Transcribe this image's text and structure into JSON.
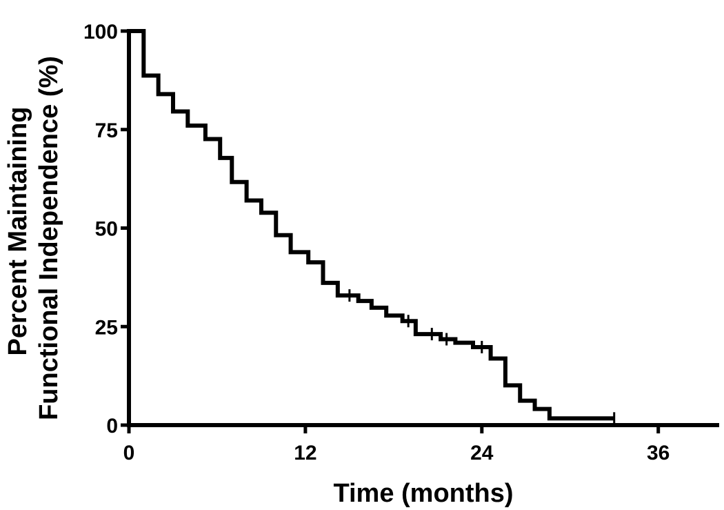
{
  "chart_data": {
    "type": "line",
    "subtype": "kaplan-meier step curve",
    "title": "",
    "xlabel": "Time (months)",
    "ylabel_lines": [
      "Percent Maintaining",
      "Functional Independence (%)"
    ],
    "xlim": [
      0,
      40
    ],
    "ylim": [
      0,
      100
    ],
    "xticks": [
      0,
      12,
      24,
      36
    ],
    "xtick_labels": [
      "0",
      "12",
      "24",
      "36"
    ],
    "yticks": [
      0,
      25,
      50,
      75,
      100
    ],
    "ytick_labels": [
      "0",
      "25",
      "50",
      "75",
      "100"
    ],
    "grid": false,
    "legend": "none",
    "line_color": "#000000",
    "series": [
      {
        "steps": [
          {
            "x": 0.0,
            "y": 100.0
          },
          {
            "x": 1.0,
            "y": 88.7
          },
          {
            "x": 2.0,
            "y": 84.0
          },
          {
            "x": 3.0,
            "y": 79.6
          },
          {
            "x": 4.0,
            "y": 76.0
          },
          {
            "x": 5.2,
            "y": 72.6
          },
          {
            "x": 6.2,
            "y": 67.8
          },
          {
            "x": 7.0,
            "y": 61.7
          },
          {
            "x": 8.0,
            "y": 57.0
          },
          {
            "x": 9.0,
            "y": 53.9
          },
          {
            "x": 10.0,
            "y": 48.2
          },
          {
            "x": 11.0,
            "y": 43.9
          },
          {
            "x": 12.2,
            "y": 41.3
          },
          {
            "x": 13.2,
            "y": 36.1
          },
          {
            "x": 14.2,
            "y": 32.9
          },
          {
            "x": 15.6,
            "y": 31.5
          },
          {
            "x": 16.5,
            "y": 29.8
          },
          {
            "x": 17.5,
            "y": 27.8
          },
          {
            "x": 18.6,
            "y": 26.4
          },
          {
            "x": 19.5,
            "y": 23.1
          },
          {
            "x": 21.2,
            "y": 21.8
          },
          {
            "x": 22.2,
            "y": 20.9
          },
          {
            "x": 23.4,
            "y": 19.8
          },
          {
            "x": 24.6,
            "y": 16.9
          },
          {
            "x": 25.6,
            "y": 10.1
          },
          {
            "x": 26.6,
            "y": 6.2
          },
          {
            "x": 27.6,
            "y": 4.1
          },
          {
            "x": 28.6,
            "y": 1.7
          }
        ],
        "end_x": 33.0,
        "censored": [
          {
            "x": 15.0,
            "y": 32.9
          },
          {
            "x": 19.0,
            "y": 26.4
          },
          {
            "x": 20.6,
            "y": 23.1
          },
          {
            "x": 21.6,
            "y": 21.8
          },
          {
            "x": 24.0,
            "y": 19.8
          },
          {
            "x": 33.0,
            "y": 1.7
          }
        ]
      }
    ]
  }
}
